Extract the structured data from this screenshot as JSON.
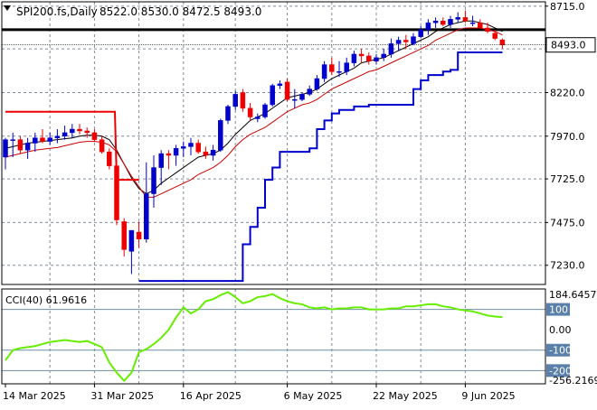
{
  "header": {
    "symbol_label": "SPI200.fs,Daily",
    "ohlc_label": "8522.0 8530.0 8472.5 8493.0",
    "indicator_label": "CCI(40) 61.9616"
  },
  "last_price_tag": "8493.0",
  "colors": {
    "bull": "#0000cc",
    "bear": "#ee0000",
    "sma": "#000000",
    "ema": "#cc0000",
    "trail_up": "#0000cc",
    "trail_down": "#ee0000",
    "resistance": "#000000",
    "cci": "#66ee00",
    "grid": "#7f8c9a",
    "tag_bg": "#5a7fa8"
  },
  "chart_data": [
    {
      "type": "candlestick",
      "title": "SPI200.fs,Daily",
      "ylim": [
        7120,
        8740
      ],
      "yticks": [
        7230.0,
        7475.0,
        7725.0,
        7970.0,
        8220.0,
        8470.0,
        8715.0
      ],
      "ytick_labels": [
        "7230.0",
        "7475.0",
        "7725.0",
        "7970.0",
        "8220.0",
        "8470.0",
        "8715.0"
      ],
      "xtick_labels": [
        "14 Mar 2025",
        "31 Mar 2025",
        "16 Apr 2025",
        "6 May 2025",
        "22 May 2025",
        "9 Jun 2025"
      ],
      "xtick_bars": [
        0,
        12,
        24,
        38,
        50,
        62
      ],
      "vgrid_bars": [
        6,
        12,
        18,
        24,
        31,
        38,
        44,
        50,
        56,
        62
      ],
      "resistance_level": 8580,
      "last_price": 8493.0,
      "ohlc": {
        "open": [
          7850,
          7950,
          7950,
          7890,
          7930,
          7960,
          7940,
          7960,
          7970,
          7990,
          8010,
          8000,
          7990,
          7950,
          7880,
          7800,
          7480,
          7310,
          7420,
          7380,
          7640,
          7790,
          7870,
          7860,
          7900,
          7910,
          7930,
          7880,
          7860,
          7890,
          8060,
          8140,
          8220,
          8130,
          8070,
          8080,
          8150,
          8260,
          8280,
          8180,
          8180,
          8210,
          8240,
          8300,
          8380,
          8340,
          8340,
          8390,
          8440,
          8430,
          8400,
          8420,
          8440,
          8500,
          8520,
          8500,
          8540,
          8580,
          8620,
          8630,
          8610,
          8640,
          8650,
          8620,
          8620,
          8590,
          8560,
          8522
        ],
        "high": [
          7960,
          7990,
          7970,
          7960,
          7990,
          8010,
          7990,
          8010,
          8030,
          8040,
          8040,
          8020,
          8010,
          7970,
          7900,
          7830,
          7500,
          7420,
          7480,
          7820,
          7860,
          7890,
          7890,
          7920,
          7940,
          7960,
          7950,
          7910,
          7920,
          8070,
          8150,
          8230,
          8240,
          8160,
          8100,
          8160,
          8270,
          8290,
          8300,
          8240,
          8220,
          8260,
          8320,
          8400,
          8420,
          8400,
          8420,
          8460,
          8470,
          8450,
          8440,
          8470,
          8530,
          8540,
          8550,
          8560,
          8600,
          8640,
          8650,
          8650,
          8660,
          8680,
          8690,
          8660,
          8640,
          8620,
          8580,
          8530
        ],
        "low": [
          7780,
          7850,
          7870,
          7840,
          7880,
          7930,
          7920,
          7930,
          7950,
          7960,
          7980,
          7960,
          7940,
          7870,
          7780,
          7460,
          7280,
          7180,
          7330,
          7360,
          7560,
          7690,
          7780,
          7800,
          7850,
          7860,
          7870,
          7840,
          7830,
          7880,
          8040,
          8120,
          8110,
          8060,
          8050,
          8070,
          8140,
          8240,
          8170,
          8130,
          8170,
          8200,
          8230,
          8280,
          8320,
          8310,
          8320,
          8370,
          8390,
          8380,
          8380,
          8400,
          8420,
          8460,
          8470,
          8490,
          8530,
          8550,
          8590,
          8600,
          8590,
          8620,
          8620,
          8600,
          8590,
          8560,
          8520,
          8472.5
        ],
        "close": [
          7950,
          7950,
          7890,
          7930,
          7960,
          7940,
          7960,
          7970,
          7990,
          8010,
          8000,
          7990,
          7950,
          7880,
          7800,
          7490,
          7320,
          7430,
          7380,
          7640,
          7790,
          7870,
          7860,
          7900,
          7910,
          7930,
          7880,
          7860,
          7890,
          8060,
          8140,
          8210,
          8130,
          8080,
          8080,
          8150,
          8260,
          8270,
          8180,
          8180,
          8210,
          8240,
          8300,
          8380,
          8340,
          8340,
          8390,
          8440,
          8430,
          8400,
          8420,
          8440,
          8500,
          8520,
          8510,
          8540,
          8580,
          8620,
          8630,
          8610,
          8640,
          8650,
          8630,
          8620,
          8590,
          8570,
          8530,
          8493.0
        ]
      },
      "series": [
        {
          "values": [
            7900,
            7910,
            7920,
            7930,
            7935,
            7940,
            7945,
            7950,
            7955,
            7960,
            7970,
            7975,
            7975,
            7970,
            7950,
            7890,
            7810,
            7730,
            7670,
            7640,
            7660,
            7700,
            7730,
            7760,
            7790,
            7820,
            7850,
            7860,
            7870,
            7890,
            7930,
            7980,
            8020,
            8060,
            8080,
            8100,
            8130,
            8160,
            8190,
            8200,
            8210,
            8220,
            8240,
            8270,
            8300,
            8320,
            8340,
            8360,
            8390,
            8400,
            8410,
            8420,
            8440,
            8460,
            8480,
            8500,
            8520,
            8540,
            8570,
            8590,
            8610,
            8620,
            8630,
            8630,
            8620,
            8610,
            8590,
            8570
          ]
        },
        {
          "values": [
            7850,
            7860,
            7870,
            7880,
            7890,
            7895,
            7900,
            7905,
            7915,
            7925,
            7935,
            7940,
            7940,
            7935,
            7920,
            7880,
            7810,
            7740,
            7680,
            7620,
            7620,
            7640,
            7660,
            7680,
            7700,
            7720,
            7750,
            7770,
            7790,
            7820,
            7860,
            7910,
            7950,
            7980,
            8000,
            8020,
            8050,
            8080,
            8110,
            8130,
            8150,
            8160,
            8180,
            8210,
            8240,
            8260,
            8280,
            8300,
            8320,
            8340,
            8350,
            8370,
            8390,
            8410,
            8430,
            8450,
            8470,
            8490,
            8520,
            8540,
            8560,
            8580,
            8590,
            8590,
            8590,
            8580,
            8570,
            8550
          ]
        },
        {
          "values": [
            8110,
            8110,
            8110,
            8110,
            8110,
            8110,
            8110,
            8110,
            8110,
            8110,
            8110,
            8110,
            8110,
            8110,
            8110,
            7720,
            7720,
            7720,
            7720,
            7720,
            7720,
            7720,
            7720,
            7720,
            7720,
            7720,
            7720,
            7720,
            7720,
            7720,
            7720,
            7720,
            7720,
            7720,
            7720,
            7720,
            7720,
            7720,
            7720,
            7720,
            7720,
            7720,
            7720,
            7720,
            7720,
            7720,
            7720,
            7720,
            7720,
            7720,
            7720,
            7720,
            7720,
            7720,
            7720,
            7720,
            7720,
            7720,
            7720,
            7720,
            7720,
            7720,
            7720,
            7720,
            7720,
            7720,
            7720,
            7720
          ]
        },
        {
          "values": [
            7140,
            7140,
            7140,
            7140,
            7140,
            7140,
            7140,
            7140,
            7140,
            7140,
            7140,
            7140,
            7140,
            7140,
            7140,
            7140,
            7140,
            7140,
            7140,
            7140,
            7140,
            7140,
            7140,
            7140,
            7140,
            7140,
            7140,
            7140,
            7140,
            7140,
            7140,
            7140,
            7350,
            7450,
            7560,
            7720,
            7790,
            7880,
            7880,
            7880,
            7880,
            7900,
            8010,
            8060,
            8100,
            8120,
            8120,
            8140,
            8140,
            8150,
            8150,
            8150,
            8150,
            8150,
            8150,
            8240,
            8290,
            8320,
            8320,
            8340,
            8350,
            8450,
            8450,
            8450,
            8450,
            8450,
            8450,
            8450
          ]
        }
      ]
    },
    {
      "type": "line",
      "title": "CCI(40) 61.9616",
      "ylim": [
        -265,
        200
      ],
      "yticks": [
        184.6457,
        100,
        0,
        -100,
        -200,
        -256.2169
      ],
      "ytick_labels": [
        "184.6457",
        "100",
        "0.00",
        "-100",
        "-200",
        "-256.2169"
      ],
      "levels": [
        100,
        -100,
        -200
      ],
      "series": [
        {
          "values": [
            -150,
            -100,
            -90,
            -85,
            -80,
            -70,
            -60,
            -55,
            -50,
            -55,
            -60,
            -55,
            -70,
            -85,
            -160,
            -210,
            -250,
            -210,
            -110,
            -95,
            -70,
            -40,
            0,
            60,
            110,
            80,
            100,
            140,
            150,
            170,
            185,
            160,
            130,
            140,
            160,
            165,
            175,
            155,
            140,
            130,
            125,
            110,
            105,
            110,
            100,
            105,
            105,
            110,
            110,
            100,
            100,
            100,
            105,
            105,
            115,
            115,
            120,
            125,
            125,
            115,
            110,
            100,
            95,
            90,
            80,
            70,
            65,
            62
          ]
        }
      ]
    }
  ]
}
